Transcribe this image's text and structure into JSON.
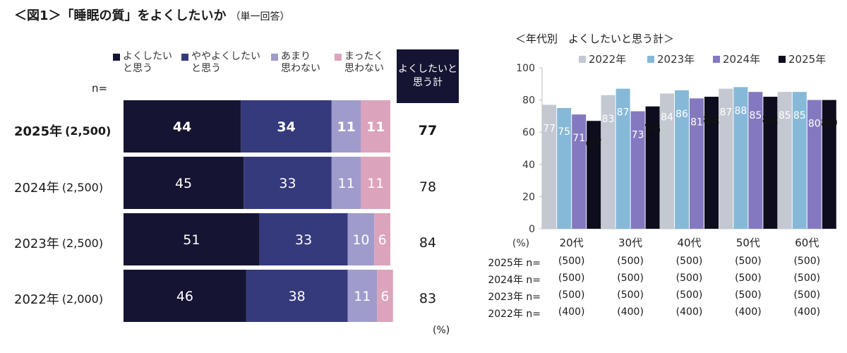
{
  "title": "＜図1＞「睡眠の質」をよくしたいか",
  "title_note": "（単一回答）",
  "left": {
    "legend": [
      {
        "label": "よくしたい\nと思う",
        "color": "#151432"
      },
      {
        "label": "ややよくしたい\nと思う",
        "color": "#353a7c"
      },
      {
        "label": "あまり\n思わない",
        "color": "#9f9ccb"
      },
      {
        "label": "まったく\n思わない",
        "color": "#dca3bc"
      }
    ],
    "total_header": "よくしたいと\n思う計",
    "n_label": "n=",
    "unit": "(%)",
    "rows": [
      {
        "year": "2025年",
        "n": "(2,500)",
        "values": [
          44,
          34,
          11,
          11
        ],
        "total": "77",
        "bold": true
      },
      {
        "year": "2024年",
        "n": "(2,500)",
        "values": [
          45,
          33,
          11,
          11
        ],
        "total": "78",
        "bold": false
      },
      {
        "year": "2023年",
        "n": "(2,500)",
        "values": [
          51,
          33,
          10,
          6
        ],
        "total": "84",
        "bold": false
      },
      {
        "year": "2022年",
        "n": "(2,000)",
        "values": [
          46,
          38,
          11,
          6
        ],
        "total": "83",
        "bold": false
      }
    ]
  },
  "right": {
    "subtitle": "＜年代別　よくしたいと思う計＞",
    "unit": "(%)",
    "n_table": {
      "rows": [
        {
          "label": "2025年 n=",
          "values": [
            "(500)",
            "(500)",
            "(500)",
            "(500)",
            "(500)"
          ]
        },
        {
          "label": "2024年 n=",
          "values": [
            "(500)",
            "(500)",
            "(500)",
            "(500)",
            "(500)"
          ]
        },
        {
          "label": "2023年 n=",
          "values": [
            "(500)",
            "(500)",
            "(500)",
            "(500)",
            "(500)"
          ]
        },
        {
          "label": "2022年 n=",
          "values": [
            "(400)",
            "(400)",
            "(400)",
            "(400)",
            "(400)"
          ]
        }
      ]
    }
  },
  "chart_data": [
    {
      "type": "bar",
      "orientation": "horizontal",
      "stacked": true,
      "title": "「睡眠の質」をよくしたいか",
      "categories": [
        "2025年 (2,500)",
        "2024年 (2,500)",
        "2023年 (2,500)",
        "2022年 (2,000)"
      ],
      "series": [
        {
          "name": "よくしたいと思う",
          "values": [
            44,
            45,
            51,
            46
          ]
        },
        {
          "name": "ややよくしたいと思う",
          "values": [
            34,
            33,
            33,
            38
          ]
        },
        {
          "name": "あまり思わない",
          "values": [
            11,
            11,
            10,
            11
          ]
        },
        {
          "name": "まったく思わない",
          "values": [
            11,
            11,
            6,
            6
          ]
        }
      ],
      "xlim": [
        0,
        100
      ],
      "xlabel": "(%)"
    },
    {
      "type": "bar",
      "title": "＜年代別　よくしたいと思う計＞",
      "categories": [
        "20代",
        "30代",
        "40代",
        "50代",
        "60代"
      ],
      "series": [
        {
          "name": "2022年",
          "color": "#c3c8d1",
          "values": [
            77,
            83,
            84,
            87,
            85
          ]
        },
        {
          "name": "2023年",
          "color": "#86b9d8",
          "values": [
            75,
            87,
            86,
            88,
            85
          ]
        },
        {
          "name": "2024年",
          "color": "#8479c0",
          "values": [
            71,
            73,
            81,
            85,
            80
          ]
        },
        {
          "name": "2025年",
          "color": "#0d0d1e",
          "values": [
            67,
            76,
            82,
            82,
            80
          ]
        }
      ],
      "ylim": [
        0,
        100
      ],
      "yticks": [
        0,
        20,
        40,
        60,
        80,
        100
      ],
      "ylabel": "(%)",
      "legend": "top"
    }
  ]
}
